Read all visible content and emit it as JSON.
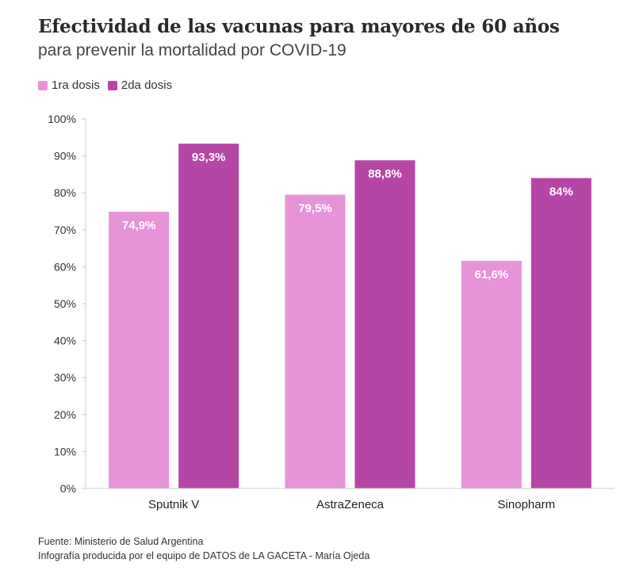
{
  "header": {
    "title": "Efectividad de las vacunas para mayores de 60 años",
    "subtitle": "para prevenir la mortalidad por COVID-19"
  },
  "footer": {
    "source": "Fuente: Ministerio de Salud Argentina",
    "credit": "Infografía producida por el equipo de DATOS de LA GACETA - María Ojeda"
  },
  "chart_data": {
    "type": "bar",
    "title": "Efectividad de las vacunas para mayores de 60 años",
    "subtitle": "para prevenir la mortalidad por COVID-19",
    "categories": [
      "Sputnik V",
      "AstraZeneca",
      "Sinopharm"
    ],
    "series": [
      {
        "name": "1ra dosis",
        "color": "#e693d8",
        "values": [
          74.9,
          79.5,
          61.6
        ],
        "labels": [
          "74,9%",
          "79,5%",
          "61,6%"
        ]
      },
      {
        "name": "2da dosis",
        "color": "#b646a6",
        "values": [
          93.3,
          88.8,
          84
        ],
        "labels": [
          "93,3%",
          "88,8%",
          "84%"
        ]
      }
    ],
    "ylim": [
      0,
      100
    ],
    "yticks": [
      "0%",
      "10%",
      "20%",
      "30%",
      "40%",
      "50%",
      "60%",
      "70%",
      "80%",
      "90%",
      "100%"
    ],
    "grid": false,
    "legend_position": "top-left"
  }
}
